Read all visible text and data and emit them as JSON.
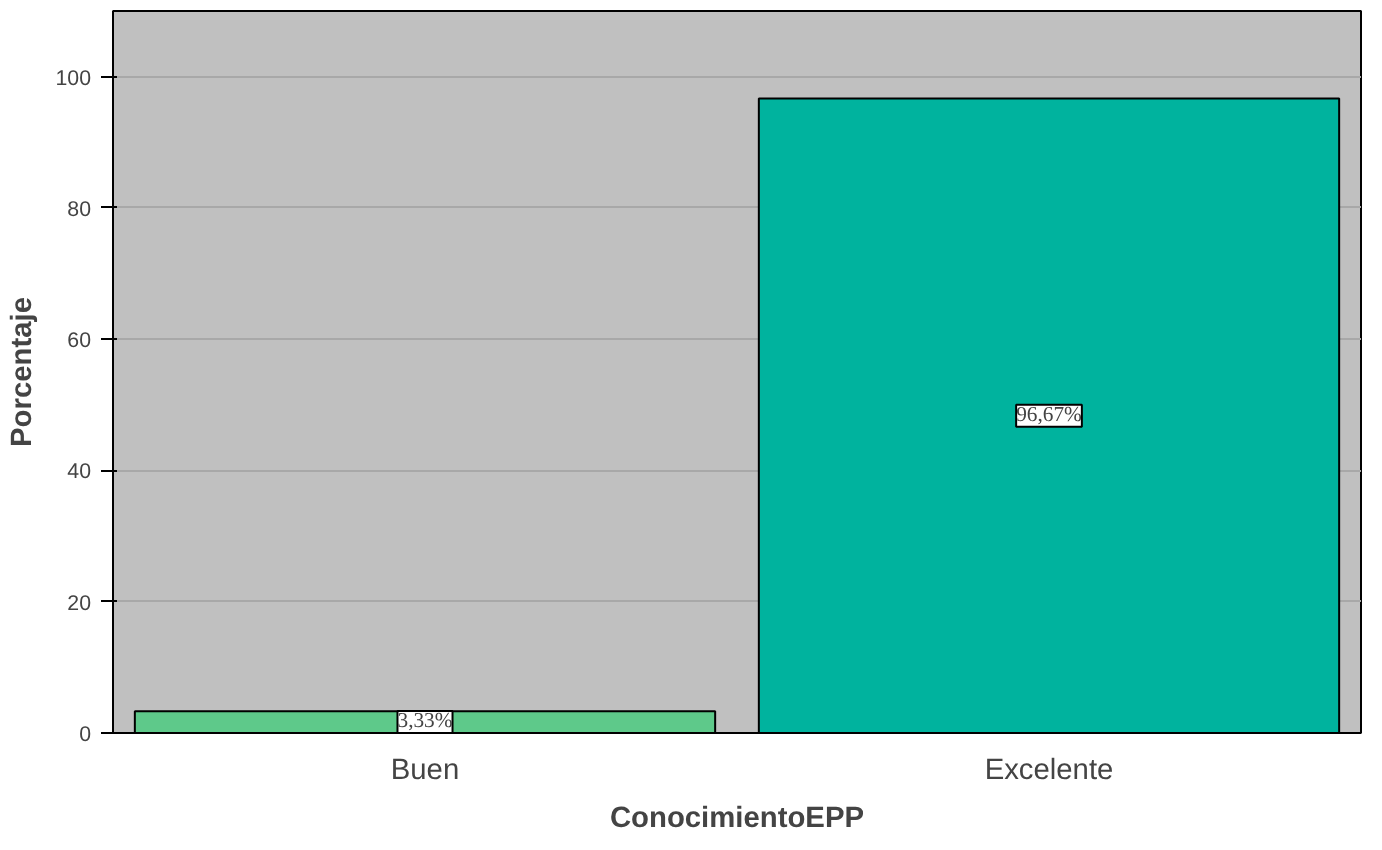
{
  "chart_data": {
    "type": "bar",
    "xlabel": "ConocimientoEPP",
    "ylabel": "Porcentaje",
    "categories": [
      "Buen",
      "Excelente"
    ],
    "values": [
      3.33,
      96.67
    ],
    "colors": [
      "#5ec98a",
      "#00b39e"
    ],
    "value_labels": [
      "3,33%",
      "96,67%"
    ],
    "ylim": [
      0,
      110
    ],
    "yticks": [
      0,
      20,
      40,
      60,
      80,
      100
    ],
    "grid": "y"
  }
}
